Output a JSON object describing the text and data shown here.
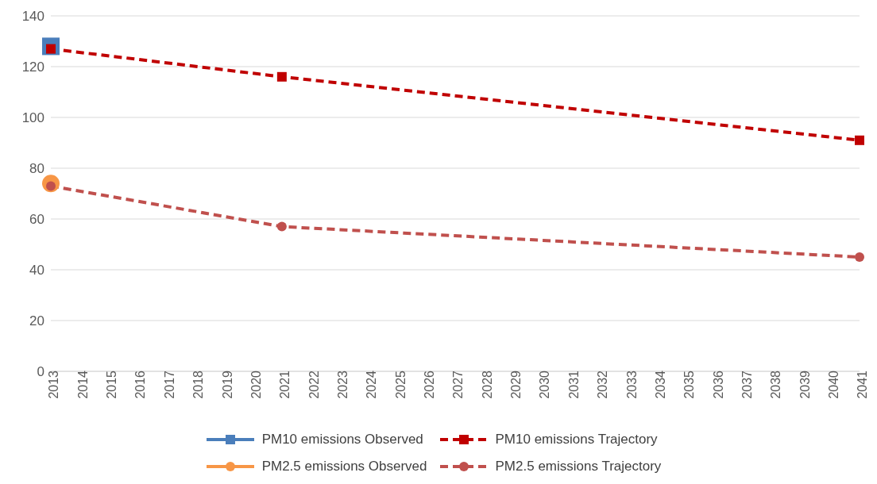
{
  "chart_data": {
    "type": "line",
    "categories": [
      "2013",
      "2014",
      "2015",
      "2016",
      "2017",
      "2018",
      "2019",
      "2020",
      "2021",
      "2022",
      "2023",
      "2024",
      "2025",
      "2026",
      "2027",
      "2028",
      "2029",
      "2030",
      "2031",
      "2032",
      "2033",
      "2034",
      "2035",
      "2036",
      "2037",
      "2038",
      "2039",
      "2040",
      "2041"
    ],
    "ylim": [
      0,
      140
    ],
    "yticks": [
      0,
      20,
      40,
      60,
      80,
      100,
      120,
      140
    ],
    "grid": "y",
    "legend": "bottom",
    "series": [
      {
        "name": "PM10 emissions Observed",
        "color": "#4a7ebb",
        "marker": "square",
        "line_style": "solid",
        "values": [
          128,
          null,
          null,
          null,
          null,
          null,
          null,
          null,
          null,
          null,
          null,
          null,
          null,
          null,
          null,
          null,
          null,
          null,
          null,
          null,
          null,
          null,
          null,
          null,
          null,
          null,
          null,
          null,
          null
        ]
      },
      {
        "name": "PM10 emissions Trajectory",
        "color": "#c00000",
        "marker": "square",
        "line_style": "dashed",
        "values": [
          127,
          null,
          null,
          null,
          null,
          null,
          null,
          null,
          116,
          null,
          null,
          null,
          null,
          null,
          null,
          null,
          null,
          null,
          null,
          null,
          null,
          null,
          null,
          null,
          null,
          null,
          null,
          null,
          91
        ]
      },
      {
        "name": "PM2.5 emissions Observed",
        "color": "#f79646",
        "marker": "circle",
        "line_style": "solid",
        "values": [
          74,
          null,
          null,
          null,
          null,
          null,
          null,
          null,
          null,
          null,
          null,
          null,
          null,
          null,
          null,
          null,
          null,
          null,
          null,
          null,
          null,
          null,
          null,
          null,
          null,
          null,
          null,
          null,
          null
        ]
      },
      {
        "name": "PM2.5 emissions Trajectory",
        "color": "#c0504d",
        "marker": "circle",
        "line_style": "dashed",
        "values": [
          73,
          null,
          null,
          null,
          null,
          null,
          null,
          null,
          57,
          null,
          null,
          null,
          null,
          null,
          null,
          null,
          null,
          null,
          null,
          null,
          null,
          null,
          null,
          null,
          null,
          null,
          null,
          null,
          45
        ]
      }
    ]
  }
}
